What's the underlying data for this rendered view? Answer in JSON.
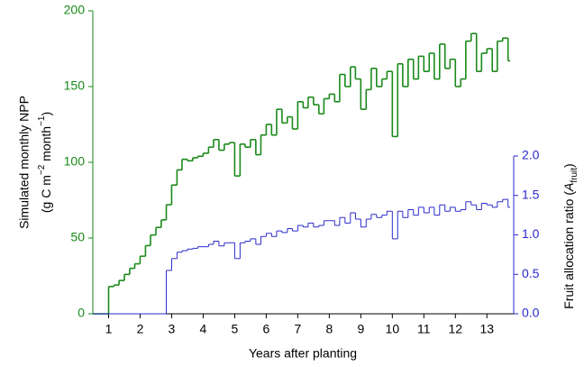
{
  "chart_data": {
    "type": "step",
    "xlabel": "Years after planting",
    "ylabel": "Simulated monthly NPP",
    "ylabel_units": [
      "(g C m",
      "−2",
      " month",
      "−1",
      ")"
    ],
    "y2label": [
      "Fruit allocation ratio (",
      "A",
      "fruit",
      ")"
    ],
    "xlim": [
      0.5,
      13.85
    ],
    "xticks": [
      1,
      2,
      3,
      4,
      5,
      6,
      7,
      8,
      9,
      10,
      11,
      12,
      13
    ],
    "ylim": [
      0,
      200
    ],
    "yticks": [
      0,
      50,
      100,
      150,
      200
    ],
    "y2lim": [
      0,
      2
    ],
    "y2ticks": [
      {
        "value": 0,
        "label": "0.0"
      },
      {
        "value": 0.5,
        "label": "0.5"
      },
      {
        "value": 1,
        "label": "1.0"
      },
      {
        "value": 1.5,
        "label": "1.5"
      },
      {
        "value": 2,
        "label": "2.0"
      }
    ],
    "y_color": "#1a8a1a",
    "y2_color": "#2a2acc",
    "x": [
      0.5,
      0.67,
      0.83,
      1,
      1.17,
      1.33,
      1.5,
      1.67,
      1.83,
      2,
      2.17,
      2.33,
      2.5,
      2.67,
      2.83,
      3,
      3.17,
      3.33,
      3.5,
      3.67,
      3.83,
      4,
      4.17,
      4.33,
      4.5,
      4.67,
      4.83,
      5,
      5.17,
      5.33,
      5.5,
      5.67,
      5.83,
      6,
      6.17,
      6.33,
      6.5,
      6.67,
      6.83,
      7,
      7.17,
      7.33,
      7.5,
      7.67,
      7.83,
      8,
      8.17,
      8.33,
      8.5,
      8.67,
      8.83,
      9,
      9.17,
      9.33,
      9.5,
      9.67,
      9.83,
      10,
      10.17,
      10.33,
      10.5,
      10.67,
      10.83,
      11,
      11.17,
      11.33,
      11.5,
      11.67,
      11.83,
      12,
      12.17,
      12.33,
      12.5,
      12.67,
      12.83,
      13,
      13.17,
      13.33,
      13.5,
      13.67
    ],
    "series": [
      {
        "color": "#1a8a1a",
        "values": [
          0,
          0,
          0,
          18,
          19,
          22,
          26,
          30,
          33,
          38,
          45,
          52,
          57,
          62,
          72,
          85,
          95,
          102,
          101,
          103,
          104,
          106,
          110,
          115,
          108,
          112,
          113,
          91,
          112,
          110,
          115,
          105,
          118,
          125,
          118,
          135,
          126,
          130,
          122,
          140,
          136,
          143,
          138,
          132,
          142,
          145,
          140,
          158,
          150,
          163,
          155,
          135,
          148,
          162,
          150,
          155,
          160,
          117,
          165,
          150,
          168,
          155,
          170,
          160,
          172,
          155,
          178,
          162,
          168,
          150,
          155,
          180,
          185,
          160,
          172,
          175,
          160,
          180,
          182,
          167
        ]
      },
      {
        "color": "#2a2acc",
        "axis": "y2",
        "values": [
          0,
          0,
          0,
          0,
          0,
          0,
          0,
          0,
          0,
          0,
          0,
          0,
          0,
          0,
          0.55,
          0.7,
          0.78,
          0.8,
          0.82,
          0.83,
          0.85,
          0.85,
          0.88,
          0.92,
          0.86,
          0.9,
          0.9,
          0.7,
          0.9,
          0.92,
          0.95,
          0.88,
          0.98,
          1.02,
          0.98,
          1.05,
          1.03,
          1.08,
          1.05,
          1.12,
          1.1,
          1.15,
          1.1,
          1.12,
          1.18,
          1.18,
          1.12,
          1.22,
          1.15,
          1.28,
          1.2,
          1.1,
          1.2,
          1.26,
          1.22,
          1.25,
          1.3,
          0.95,
          1.3,
          1.22,
          1.32,
          1.25,
          1.35,
          1.28,
          1.35,
          1.25,
          1.38,
          1.3,
          1.35,
          1.3,
          1.32,
          1.42,
          1.38,
          1.32,
          1.4,
          1.38,
          1.35,
          1.42,
          1.45,
          1.35
        ]
      }
    ]
  }
}
